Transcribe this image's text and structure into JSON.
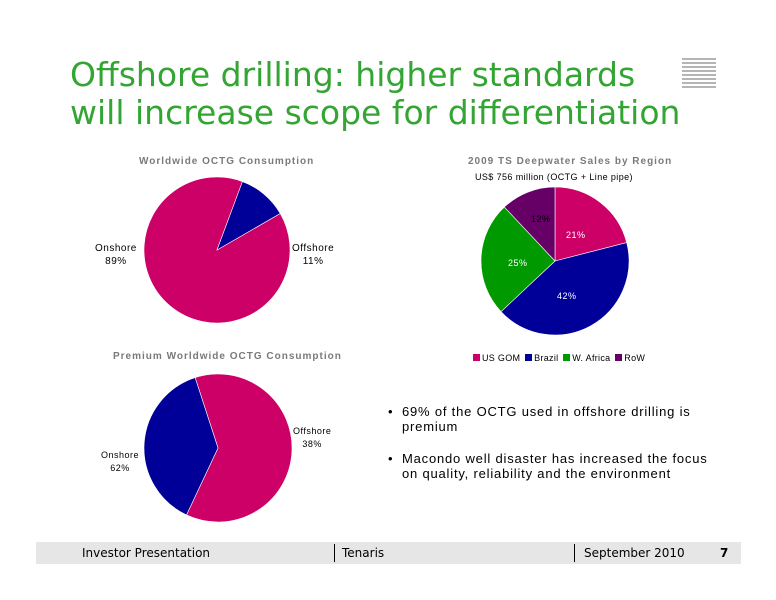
{
  "slide": {
    "title_line1": "Offshore drilling: higher standards",
    "title_line2": "will increase scope for differentiation",
    "accent_color": "#33a532"
  },
  "bullets": [
    "69% of the OCTG used in offshore drilling is premium",
    "Macondo well disaster has increased the focus on quality, reliability and the environment"
  ],
  "footer": {
    "left": "Investor Presentation",
    "center": "Tenaris",
    "right": "September 2010",
    "page": "7"
  },
  "chart_data": [
    {
      "type": "pie",
      "title": "Worldwide OCTG Consumption",
      "slices": [
        {
          "label": "Onshore",
          "value_label": "89%",
          "value": 89,
          "color": "#cc0066"
        },
        {
          "label": "Offshore",
          "value_label": "11%",
          "value": 11,
          "color": "#000099"
        }
      ]
    },
    {
      "type": "pie",
      "title": "2009 TS Deepwater Sales by Region",
      "subtitle": "US$ 756 million (OCTG + Line pipe)",
      "legend_position": "bottom",
      "slices": [
        {
          "label": "US GOM",
          "value_label": "21%",
          "value": 21,
          "color": "#cc0066"
        },
        {
          "label": "Brazil",
          "value_label": "42%",
          "value": 42,
          "color": "#000099"
        },
        {
          "label": "W. Africa",
          "value_label": "25%",
          "value": 25,
          "color": "#009900"
        },
        {
          "label": "RoW",
          "value_label": "12%",
          "value": 12,
          "color": "#660066"
        }
      ]
    },
    {
      "type": "pie",
      "title": "Premium Worldwide OCTG Consumption",
      "slices": [
        {
          "label": "Onshore",
          "value_label": "62%",
          "value": 62,
          "color": "#cc0066"
        },
        {
          "label": "Offshore",
          "value_label": "38%",
          "value": 38,
          "color": "#000099"
        }
      ]
    }
  ]
}
